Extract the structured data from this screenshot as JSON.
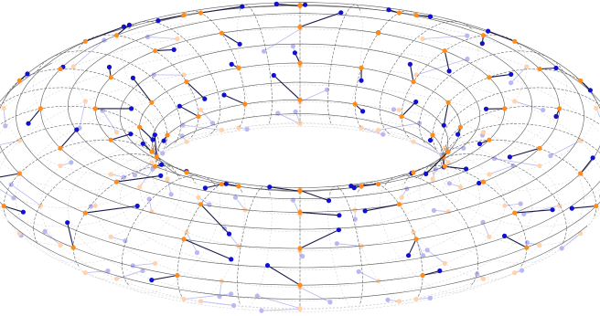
{
  "figure": {
    "subject": "torus-knot-lattice",
    "colors": {
      "background": "#ffffff",
      "grid_line": "#5a5a5a",
      "grid_line_hidden": "#bdbdbd",
      "lattice_node": "#ff8c1a",
      "lattice_node_hidden": "#ffd3ad",
      "endpoint": "#1010d0",
      "endpoint_hidden": "#b8b8f2",
      "segment": "#1a1a4a",
      "segment_hidden": "#b8b8f2"
    },
    "lattice": {
      "major_divisions": 32,
      "minor_divisions": 20,
      "node_step_major": 2,
      "node_step_minor": 2
    }
  }
}
